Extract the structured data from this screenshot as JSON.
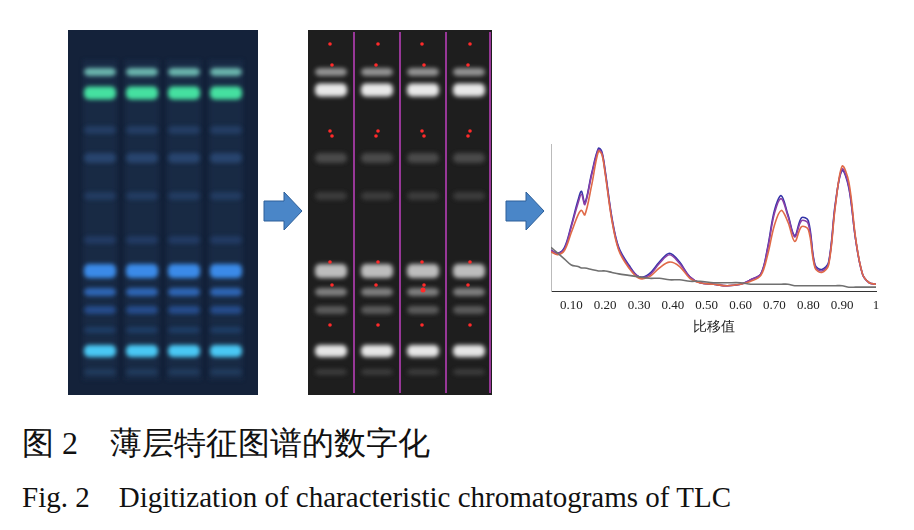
{
  "figure": {
    "caption_zh": "图 2　薄层特征图谱的数字化",
    "caption_en": "Fig. 2　Digitization of characteristic chromatograms of TLC"
  },
  "chart_data": {
    "type": "line",
    "x_label": "比移值",
    "x": [
      0.04,
      0.06,
      0.08,
      0.1,
      0.12,
      0.13,
      0.14,
      0.16,
      0.18,
      0.19,
      0.2,
      0.22,
      0.24,
      0.27,
      0.3,
      0.33,
      0.36,
      0.39,
      0.42,
      0.45,
      0.48,
      0.52,
      0.56,
      0.6,
      0.63,
      0.66,
      0.68,
      0.7,
      0.72,
      0.74,
      0.76,
      0.78,
      0.8,
      0.82,
      0.84,
      0.86,
      0.88,
      0.9,
      0.92,
      0.94,
      0.96,
      0.98,
      1.0
    ],
    "series": [
      {
        "color": "#707070",
        "values": [
          30,
          26,
          22,
          18,
          17,
          16,
          16,
          15,
          14,
          14,
          14,
          13,
          12,
          11,
          10,
          9,
          9,
          8,
          8,
          7,
          7,
          6,
          6,
          6,
          5,
          5,
          5,
          5,
          5,
          5,
          4,
          4,
          4,
          4,
          4,
          4,
          4,
          4,
          3,
          3,
          3,
          3,
          3
        ]
      },
      {
        "color": "#e06a48",
        "values": [
          27,
          25,
          28,
          40,
          52,
          55,
          52,
          72,
          95,
          93,
          80,
          48,
          28,
          16,
          9,
          10,
          16,
          20,
          17,
          9,
          6,
          5,
          4,
          5,
          7,
          11,
          25,
          45,
          55,
          47,
          34,
          44,
          42,
          16,
          13,
          18,
          58,
          85,
          74,
          36,
          12,
          6,
          5
        ]
      },
      {
        "color": "#8a3fa6",
        "values": [
          28,
          26,
          29,
          44,
          60,
          66,
          59,
          79,
          96,
          94,
          81,
          49,
          29,
          17,
          10,
          11,
          19,
          25,
          19,
          10,
          6,
          5,
          4,
          5,
          8,
          12,
          29,
          53,
          63,
          51,
          37,
          48,
          46,
          17,
          14,
          19,
          59,
          83,
          71,
          35,
          12,
          6,
          5
        ]
      },
      {
        "color": "#3434a8",
        "values": [
          28,
          26,
          30,
          45,
          62,
          68,
          60,
          80,
          97,
          95,
          82,
          50,
          30,
          18,
          10,
          12,
          20,
          26,
          20,
          10,
          6,
          5,
          4,
          5,
          8,
          12,
          30,
          55,
          65,
          52,
          38,
          50,
          48,
          18,
          15,
          20,
          60,
          82,
          70,
          35,
          12,
          6,
          5
        ]
      }
    ],
    "xlim": [
      0.04,
      1
    ],
    "xticks": [
      {
        "value": 0.1,
        "label": "0.10"
      },
      {
        "value": 0.2,
        "label": "0.20"
      },
      {
        "value": 0.3,
        "label": "0.30"
      },
      {
        "value": 0.4,
        "label": "0.40"
      },
      {
        "value": 0.5,
        "label": "0.50"
      },
      {
        "value": 0.6,
        "label": "0.60"
      },
      {
        "value": 0.7,
        "label": "0.70"
      },
      {
        "value": 0.8,
        "label": "0.80"
      },
      {
        "value": 0.9,
        "label": "0.90"
      },
      1
    ],
    "ylim": [
      0,
      100
    ],
    "grid": false,
    "tick_labels": "x"
  }
}
